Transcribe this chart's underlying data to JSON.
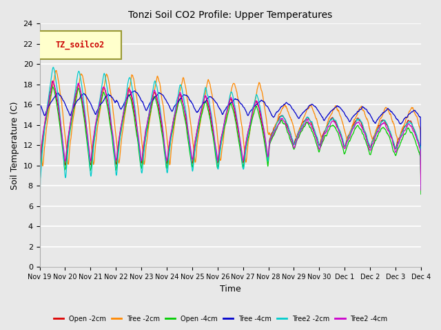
{
  "title": "Tonzi Soil CO2 Profile: Upper Temperatures",
  "xlabel": "Time",
  "ylabel": "Soil Temperature (C)",
  "ylim": [
    0,
    24
  ],
  "yticks": [
    0,
    2,
    4,
    6,
    8,
    10,
    12,
    14,
    16,
    18,
    20,
    22,
    24
  ],
  "xtick_labels": [
    "Nov 19",
    "Nov 20",
    "Nov 21",
    "Nov 22",
    "Nov 23",
    "Nov 24",
    "Nov 25",
    "Nov 26",
    "Nov 27",
    "Nov 28",
    "Nov 29",
    "Nov 30",
    "Dec 1",
    "Dec 2",
    "Dec 3",
    "Dec 4"
  ],
  "bg_color": "#e8e8e8",
  "grid_color": "#ffffff",
  "legend_label": "TZ_soilco2",
  "legend_box_color": "#ffffcc",
  "legend_text_color": "#cc0000",
  "series": [
    {
      "label": "Open -2cm",
      "color": "#dd0000"
    },
    {
      "label": "Tree -2cm",
      "color": "#ff8800"
    },
    {
      "label": "Open -4cm",
      "color": "#00cc00"
    },
    {
      "label": "Tree -4cm",
      "color": "#0000cc"
    },
    {
      "label": "Tree2 -2cm",
      "color": "#00cccc"
    },
    {
      "label": "Tree2 -4cm",
      "color": "#cc00cc"
    }
  ]
}
